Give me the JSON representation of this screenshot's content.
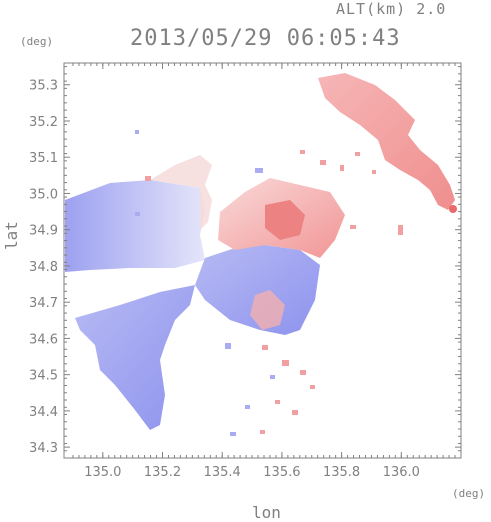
{
  "header": {
    "altitude": "ALT(km) 2.0",
    "datetime": "2013/05/29 06:05:43"
  },
  "axes": {
    "y_unit": "(deg)",
    "x_unit": "(deg)",
    "y_label": "lat",
    "x_label": "lon"
  },
  "chart_data": {
    "type": "heatmap",
    "title": "2013/05/29 06:05:43",
    "xlabel": "lon",
    "ylabel": "lat",
    "xlim": [
      134.87,
      136.2
    ],
    "ylim": [
      34.27,
      35.36
    ],
    "x_ticks": [
      "135.0",
      "135.2",
      "135.4",
      "135.6",
      "135.8",
      "136.0"
    ],
    "y_ticks": [
      "34.3",
      "34.4",
      "34.5",
      "34.6",
      "34.7",
      "34.8",
      "34.9",
      "35.0",
      "35.1",
      "35.2",
      "35.3"
    ],
    "colors": {
      "approaching": "#9a9ef2",
      "receding": "#f29a9a",
      "axis": "#808080"
    }
  }
}
